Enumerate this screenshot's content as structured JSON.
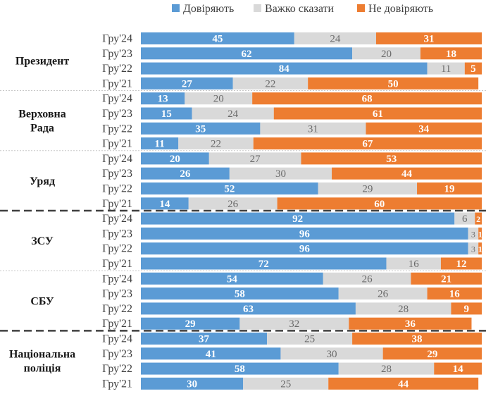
{
  "chart_data": {
    "type": "bar",
    "stacked": true,
    "orientation": "horizontal",
    "legend_position": "top",
    "series": [
      {
        "key": "trust",
        "name": "Довіряють",
        "color": "#5b9bd5"
      },
      {
        "key": "hard",
        "name": "Важко сказати",
        "color": "#d9d9d9"
      },
      {
        "key": "distrust",
        "name": "Не довіряють",
        "color": "#ed7d31"
      }
    ],
    "groups": [
      {
        "name": [
          "Президент"
        ],
        "rows": [
          {
            "label": "Гру'24",
            "values": [
              45,
              24,
              31
            ]
          },
          {
            "label": "Гру'23",
            "values": [
              62,
              20,
              18
            ]
          },
          {
            "label": "Гру'22",
            "values": [
              84,
              11,
              5
            ]
          },
          {
            "label": "Гру'21",
            "values": [
              27,
              22,
              50
            ]
          }
        ]
      },
      {
        "name": [
          "Верховна",
          "Рада"
        ],
        "rows": [
          {
            "label": "Гру'24",
            "values": [
              13,
              20,
              68
            ]
          },
          {
            "label": "Гру'23",
            "values": [
              15,
              24,
              61
            ]
          },
          {
            "label": "Гру'22",
            "values": [
              35,
              31,
              34
            ]
          },
          {
            "label": "Гру'21",
            "values": [
              11,
              22,
              67
            ]
          }
        ]
      },
      {
        "name": [
          "Уряд"
        ],
        "rows": [
          {
            "label": "Гру'24",
            "values": [
              20,
              27,
              53
            ]
          },
          {
            "label": "Гру'23",
            "values": [
              26,
              30,
              44
            ]
          },
          {
            "label": "Гру'22",
            "values": [
              52,
              29,
              19
            ]
          },
          {
            "label": "Гру'21",
            "values": [
              14,
              26,
              60
            ]
          }
        ]
      },
      {
        "name": [
          "ЗСУ"
        ],
        "rows": [
          {
            "label": "Гру'24",
            "values": [
              92,
              6,
              2
            ]
          },
          {
            "label": "Гру'23",
            "values": [
              96,
              3,
              1
            ]
          },
          {
            "label": "Гру'22",
            "values": [
              96,
              3,
              1
            ]
          },
          {
            "label": "Гру'21",
            "values": [
              72,
              16,
              12
            ]
          }
        ]
      },
      {
        "name": [
          "СБУ"
        ],
        "rows": [
          {
            "label": "Гру'24",
            "values": [
              54,
              26,
              21
            ]
          },
          {
            "label": "Гру'23",
            "values": [
              58,
              26,
              16
            ]
          },
          {
            "label": "Гру'22",
            "values": [
              63,
              28,
              9
            ]
          },
          {
            "label": "Гру'21",
            "values": [
              29,
              32,
              36
            ]
          }
        ]
      },
      {
        "name": [
          "Національна",
          "поліція"
        ],
        "rows": [
          {
            "label": "Гру'24",
            "values": [
              37,
              25,
              38
            ]
          },
          {
            "label": "Гру'23",
            "values": [
              41,
              30,
              29
            ]
          },
          {
            "label": "Гру'22",
            "values": [
              58,
              28,
              14
            ]
          },
          {
            "label": "Гру'21",
            "values": [
              30,
              25,
              44
            ]
          }
        ]
      }
    ],
    "separators": [
      {
        "after_group": 0,
        "style": "dotted"
      },
      {
        "after_group": 1,
        "style": "dotted"
      },
      {
        "after_group": 2,
        "style": "dashed"
      },
      {
        "after_group": 3,
        "style": "dotted"
      },
      {
        "after_group": 4,
        "style": "dashed"
      }
    ]
  }
}
